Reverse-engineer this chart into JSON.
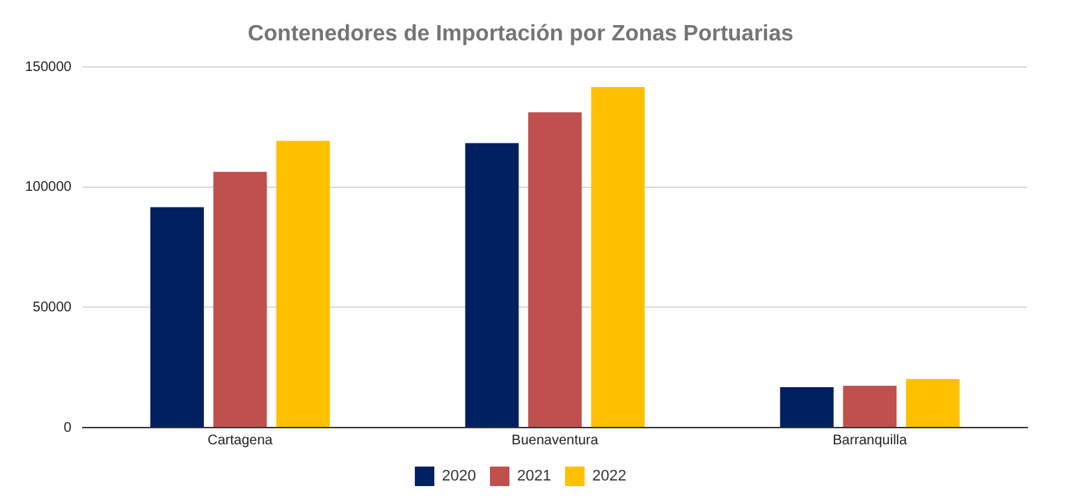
{
  "chart_data": {
    "type": "bar",
    "title": "Contenedores de Importación por Zonas Portuarias",
    "categories": [
      "Cartagena",
      "Buenaventura",
      "Barranquilla"
    ],
    "series": [
      {
        "name": "2020",
        "color": "#002060",
        "values": [
          91700,
          118400,
          16800
        ]
      },
      {
        "name": "2021",
        "color": "#c0504d",
        "values": [
          106400,
          131200,
          17400
        ]
      },
      {
        "name": "2022",
        "color": "#ffc000",
        "values": [
          119300,
          141700,
          20200
        ]
      }
    ],
    "ylim": [
      0,
      150000
    ],
    "yticks": [
      0,
      50000,
      100000,
      150000
    ],
    "grid": "y",
    "legend": "bottom"
  }
}
